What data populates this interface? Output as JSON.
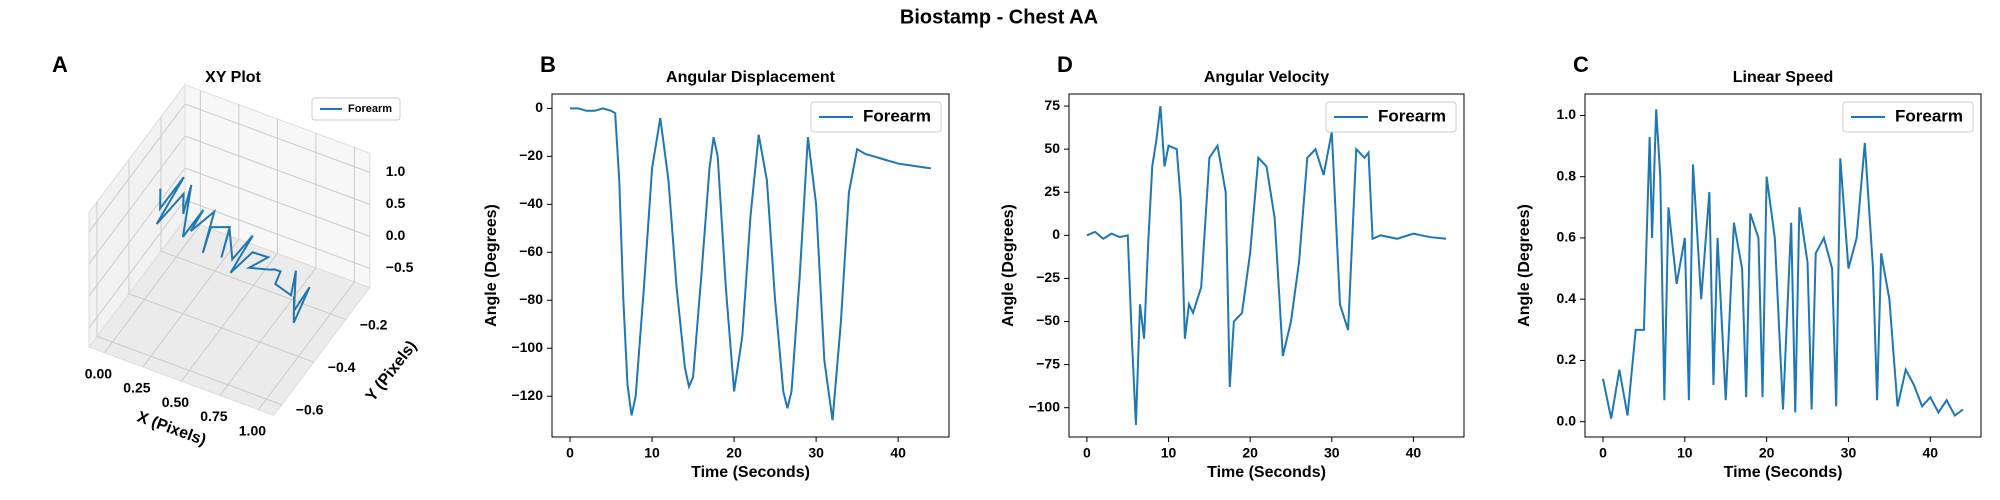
{
  "title": "Biostamp - Chest AA",
  "chart_data": [
    {
      "type": "line3d",
      "panel_label": "A",
      "title": "XY Plot",
      "xlabel": "X (Pixels)",
      "ylabel": "Y (Pixels)",
      "legend": "upper right",
      "xlim": [
        -0.1,
        1.1
      ],
      "ylim": [
        -0.65,
        -0.05
      ],
      "zlim": [
        -0.8,
        1.3
      ],
      "xticks": [
        {
          "value": 0,
          "label": "0.00"
        },
        {
          "value": 0.25,
          "label": "0.25"
        },
        {
          "value": 0.5,
          "label": "0.50"
        },
        {
          "value": 0.75,
          "label": "0.75"
        },
        {
          "value": 1,
          "label": "1.00"
        }
      ],
      "yticks": [
        {
          "value": -0.6,
          "label": "−0.6"
        },
        {
          "value": -0.4,
          "label": "−0.4"
        },
        {
          "value": -0.2,
          "label": "−0.2"
        }
      ],
      "zticks": [
        {
          "value": -0.5,
          "label": "−0.5"
        },
        {
          "value": 0,
          "label": "0.0"
        },
        {
          "value": 0.5,
          "label": "0.5"
        },
        {
          "value": 1,
          "label": "1.0"
        }
      ],
      "series": [
        {
          "name": "Forearm",
          "color": "#1f77b4",
          "x": [
            0.0,
            0.05,
            0.1,
            0.08,
            0.15,
            0.2,
            0.18,
            0.25,
            0.3,
            0.28,
            0.35,
            0.4,
            0.38,
            0.45,
            0.5,
            0.48,
            0.55,
            0.6,
            0.58,
            0.65,
            0.7,
            0.68,
            0.75,
            0.8,
            0.78,
            0.85,
            0.9,
            0.88,
            0.95,
            1.0,
            0.97,
            0.92
          ],
          "y": [
            -0.3,
            -0.35,
            -0.25,
            -0.4,
            -0.3,
            -0.35,
            -0.28,
            -0.4,
            -0.32,
            -0.38,
            -0.3,
            -0.42,
            -0.35,
            -0.3,
            -0.4,
            -0.33,
            -0.38,
            -0.3,
            -0.42,
            -0.35,
            -0.3,
            -0.4,
            -0.33,
            -0.36,
            -0.3,
            -0.4,
            -0.35,
            -0.3,
            -0.38,
            -0.33,
            -0.4,
            -0.35
          ],
          "z": [
            0.6,
            0.5,
            0.7,
            0.45,
            0.65,
            0.55,
            0.75,
            0.4,
            0.6,
            0.45,
            0.55,
            0.35,
            0.5,
            0.4,
            0.3,
            0.5,
            0.25,
            0.4,
            0.2,
            0.35,
            0.15,
            0.3,
            0.1,
            0.25,
            0.0,
            0.2,
            -0.1,
            0.1,
            -0.2,
            0.05,
            -0.3,
            -0.1
          ]
        }
      ]
    },
    {
      "type": "line",
      "panel_label": "B",
      "title": "Angular Displacement",
      "xlabel": "Time (Seconds)",
      "ylabel": "Angle (Degrees)",
      "legend": "upper right",
      "xlim": [
        -2.2,
        46.2
      ],
      "ylim": [
        -137,
        6
      ],
      "xticks": [
        0,
        10,
        20,
        30,
        40
      ],
      "yticks": [
        0,
        {
          "value": -20,
          "label": "−20"
        },
        {
          "value": -40,
          "label": "−40"
        },
        {
          "value": -60,
          "label": "−60"
        },
        {
          "value": -80,
          "label": "−80"
        },
        {
          "value": -100,
          "label": "−100"
        },
        {
          "value": -120,
          "label": "−120"
        }
      ],
      "series": [
        {
          "name": "Forearm",
          "color": "#1f77b4",
          "x": [
            0,
            1,
            2,
            3,
            4,
            5,
            5.5,
            6,
            6.5,
            7,
            7.5,
            8,
            9,
            10,
            11,
            12,
            13,
            14,
            14.5,
            15,
            16,
            17,
            17.5,
            18,
            19,
            20,
            21,
            22,
            23,
            24,
            25,
            26,
            26.5,
            27,
            28,
            29,
            30,
            31,
            32,
            33,
            34,
            35,
            36,
            38,
            40,
            42,
            44
          ],
          "values": [
            0,
            0,
            -1,
            -1,
            0,
            -1,
            -2,
            -30,
            -80,
            -115,
            -128,
            -120,
            -75,
            -25,
            -4,
            -30,
            -75,
            -108,
            -116,
            -112,
            -70,
            -25,
            -12,
            -20,
            -75,
            -118,
            -95,
            -45,
            -11,
            -30,
            -80,
            -118,
            -125,
            -118,
            -70,
            -12,
            -40,
            -105,
            -130,
            -90,
            -35,
            -17,
            -19,
            -21,
            -23,
            -24,
            -25
          ]
        }
      ]
    },
    {
      "type": "line",
      "panel_label": "D",
      "title": "Angular Velocity",
      "xlabel": "Time (Seconds)",
      "ylabel": "Angle (Degrees)",
      "legend": "upper right",
      "xlim": [
        -2.2,
        46.2
      ],
      "ylim": [
        -117,
        82
      ],
      "xticks": [
        0,
        10,
        20,
        30,
        40
      ],
      "yticks": [
        {
          "value": -100,
          "label": "−100"
        },
        {
          "value": -75,
          "label": "−75"
        },
        {
          "value": -50,
          "label": "−50"
        },
        {
          "value": -25,
          "label": "−25"
        },
        0,
        25,
        50,
        75
      ],
      "series": [
        {
          "name": "Forearm",
          "color": "#1f77b4",
          "x": [
            0,
            1,
            2,
            3,
            4,
            5,
            5.5,
            6,
            6.5,
            7,
            7.5,
            8,
            8.5,
            9,
            9.5,
            10,
            11,
            11.5,
            12,
            12.5,
            13,
            14,
            15,
            16,
            17,
            17.5,
            18,
            19,
            20,
            21,
            22,
            23,
            24,
            25,
            26,
            27,
            28,
            29,
            30,
            31,
            32,
            33,
            34,
            34.5,
            35,
            36,
            38,
            40,
            42,
            44
          ],
          "values": [
            0,
            2,
            -2,
            1,
            -1,
            0,
            -60,
            -110,
            -40,
            -60,
            -5,
            40,
            55,
            75,
            40,
            52,
            50,
            20,
            -60,
            -40,
            -45,
            -30,
            45,
            52,
            25,
            -88,
            -50,
            -45,
            -10,
            45,
            40,
            10,
            -70,
            -50,
            -15,
            45,
            50,
            35,
            60,
            -40,
            -55,
            50,
            45,
            48,
            -2,
            0,
            -2,
            1,
            -1,
            -2
          ]
        }
      ]
    },
    {
      "type": "line",
      "panel_label": "C",
      "title": "Linear Speed",
      "xlabel": "Time (Seconds)",
      "ylabel": "Angle (Degrees)",
      "legend": "upper right",
      "xlim": [
        -2.2,
        46.2
      ],
      "ylim": [
        -0.05,
        1.07
      ],
      "xticks": [
        0,
        10,
        20,
        30,
        40
      ],
      "yticks": [
        {
          "value": 0,
          "label": "0.0"
        },
        0.2,
        0.4,
        0.6,
        0.8,
        {
          "value": 1,
          "label": "1.0"
        }
      ],
      "series": [
        {
          "name": "Forearm",
          "color": "#1f77b4",
          "x": [
            0,
            1,
            2,
            3,
            4,
            5,
            5.7,
            6,
            6.5,
            7,
            7.5,
            8,
            9,
            10,
            10.5,
            11,
            12,
            13,
            13.5,
            14,
            15,
            16,
            17,
            17.5,
            18,
            19,
            19.5,
            20,
            21,
            22,
            23,
            23.5,
            24,
            25,
            25.5,
            26,
            27,
            28,
            28.5,
            29,
            30,
            31,
            32,
            33,
            33.5,
            34,
            35,
            36,
            37,
            38,
            39,
            40,
            41,
            42,
            43,
            44
          ],
          "values": [
            0.14,
            0.01,
            0.17,
            0.02,
            0.3,
            0.3,
            0.93,
            0.6,
            1.02,
            0.8,
            0.07,
            0.7,
            0.45,
            0.6,
            0.07,
            0.84,
            0.4,
            0.75,
            0.12,
            0.6,
            0.07,
            0.65,
            0.5,
            0.08,
            0.68,
            0.6,
            0.08,
            0.8,
            0.6,
            0.04,
            0.65,
            0.03,
            0.7,
            0.52,
            0.04,
            0.55,
            0.6,
            0.5,
            0.05,
            0.86,
            0.5,
            0.6,
            0.91,
            0.5,
            0.07,
            0.55,
            0.4,
            0.05,
            0.17,
            0.12,
            0.05,
            0.08,
            0.03,
            0.07,
            0.02,
            0.04
          ]
        }
      ]
    }
  ]
}
